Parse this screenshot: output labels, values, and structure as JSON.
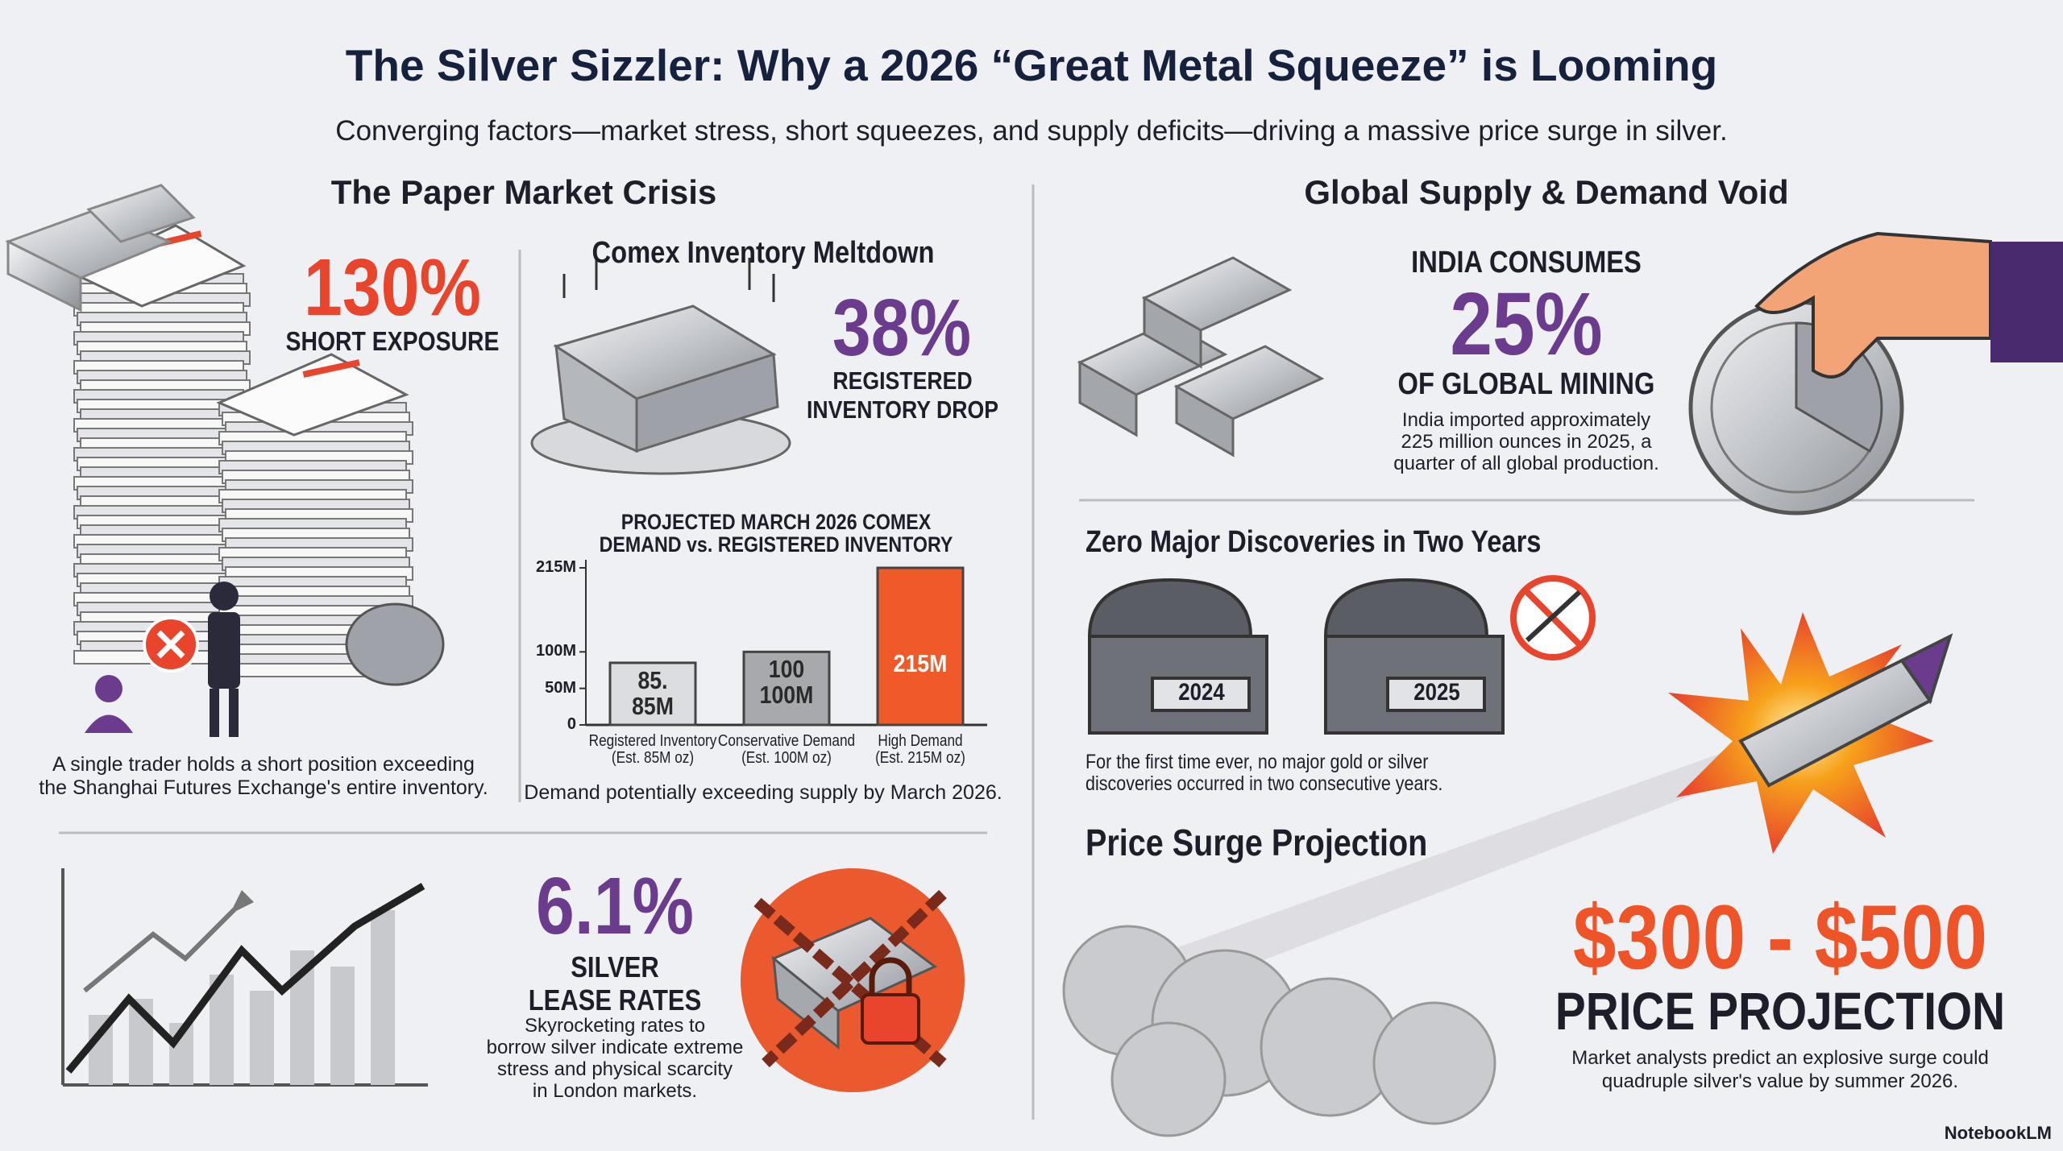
{
  "header": {
    "title": "The Silver Sizzler: Why a 2026 “Great Metal Squeeze” is Looming",
    "subtitle": "Converging factors—market stress, short squeezes, and supply deficits—driving a massive price surge in silver."
  },
  "paper_market": {
    "heading": "The Paper Market Crisis",
    "short_exposure": {
      "stat": "130%",
      "label": "SHORT EXPOSURE",
      "description": "A single trader holds a short position exceeding\nthe Shanghai Futures Exchange's entire inventory."
    },
    "comex": {
      "heading": "Comex Inventory Meltdown",
      "stat": "38%",
      "label": "REGISTERED\nINVENTORY DROP"
    },
    "lease": {
      "stat": "6.1%",
      "label": "SILVER\nLEASE RATES",
      "description": "Skyrocketing rates to\nborrow silver indicate extreme\nstress and physical scarcity\nin London markets."
    }
  },
  "chart_data": {
    "type": "bar",
    "title": "PROJECTED MARCH 2026 COMEX\nDEMAND vs. REGISTERED INVENTORY",
    "categories": [
      "Registered Inventory\n(Est. 85M oz)",
      "Conservative Demand\n(Est. 100M oz)",
      "High Demand\n(Est. 215M oz)"
    ],
    "values": [
      85,
      100,
      215
    ],
    "value_labels": [
      "85.\n85M",
      "100\n100M",
      "215M"
    ],
    "colors": [
      "#dcdde0",
      "#a7a9ad",
      "#f05a28"
    ],
    "ylim": [
      0,
      215
    ],
    "yticks": [
      0,
      {
        "value": 50,
        "label": "50M"
      },
      {
        "value": 100,
        "label": "100M"
      },
      {
        "value": 215,
        "label": "215M"
      }
    ],
    "caption": "Demand potentially exceeding supply by March 2026."
  },
  "supply_demand": {
    "heading": "Global Supply & Demand Void",
    "india": {
      "label_top": "INDIA CONSUMES",
      "stat": "25%",
      "label_bottom": "OF GLOBAL MINING",
      "description": "India imported approximately\n225 million ounces in 2025, a\nquarter of all global production."
    },
    "discoveries": {
      "heading": "Zero Major Discoveries in Two Years",
      "years": [
        "2024",
        "2025"
      ],
      "description": "For the first time ever, no major gold or silver\ndiscoveries occurred in two consecutive years."
    },
    "projection": {
      "heading": "Price Surge Projection",
      "range": "$300 - $500",
      "label": "PRICE PROJECTION",
      "description": "Market analysts predict an explosive surge could\nquadruple silver's value by summer 2026."
    }
  },
  "footer": {
    "brand": "NotebookLM"
  }
}
